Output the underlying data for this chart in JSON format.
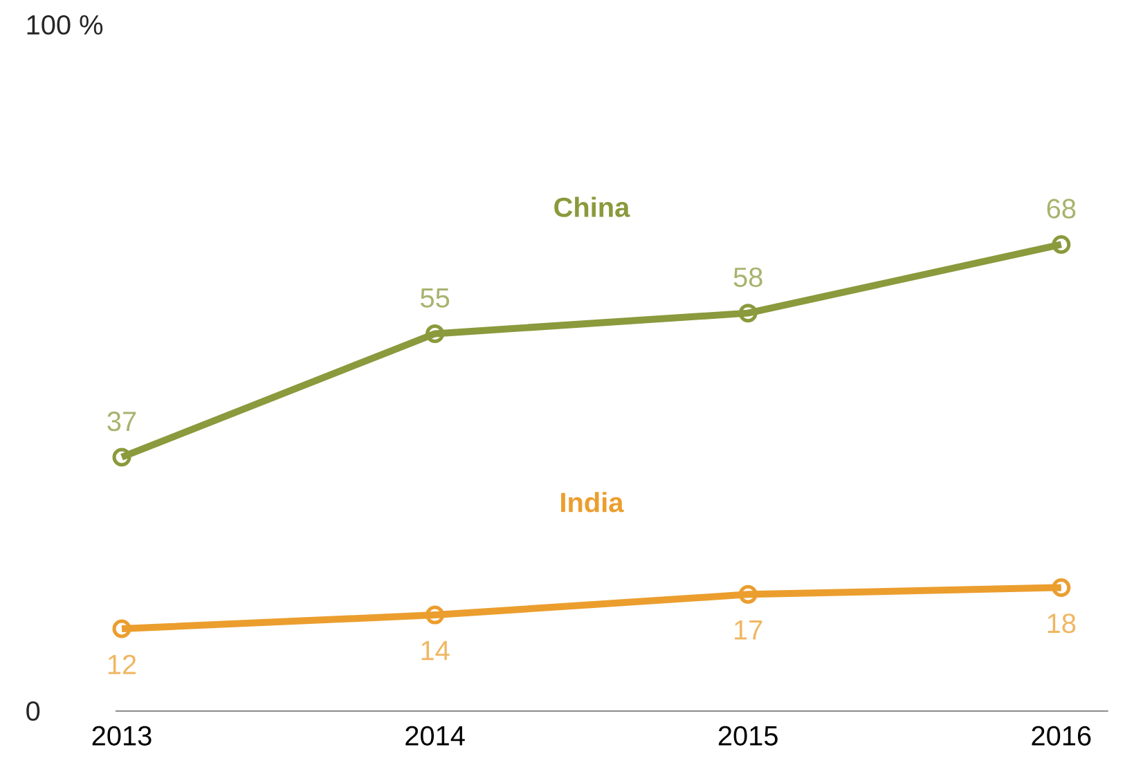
{
  "chart_data": {
    "type": "line",
    "categories": [
      "2013",
      "2014",
      "2015",
      "2016"
    ],
    "series": [
      {
        "name": "China",
        "color": "#8a9a3c",
        "values": [
          37,
          55,
          58,
          68
        ]
      },
      {
        "name": "India",
        "color": "#eb9e2e",
        "values": [
          12,
          14,
          17,
          18
        ]
      }
    ],
    "ylim": [
      0,
      100
    ],
    "yticks": [
      0,
      {
        "value": 100,
        "label": "100 %"
      }
    ],
    "data_labels": true,
    "marker": "circle",
    "line_style": "solid",
    "legend": false
  }
}
